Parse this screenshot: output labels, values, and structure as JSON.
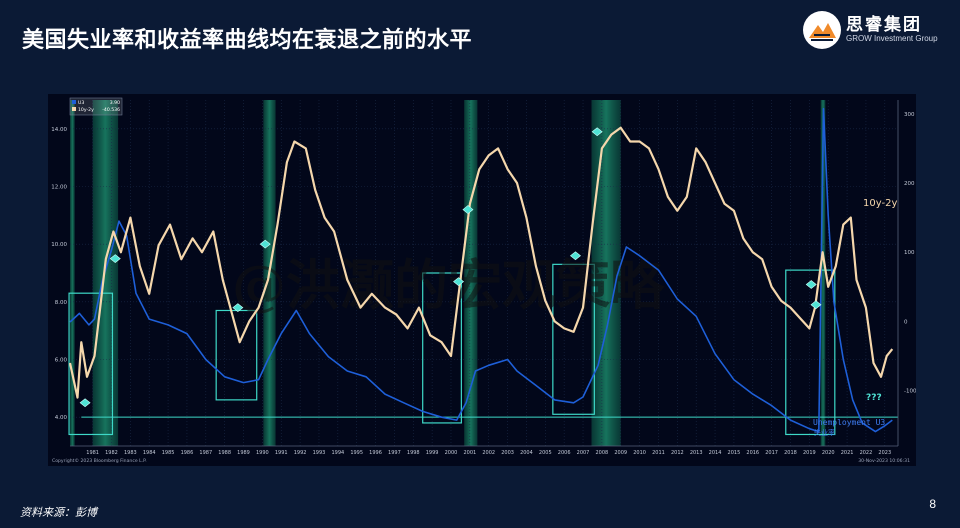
{
  "slide": {
    "title": "美国失业率和收益率曲线均在衰退之前的水平",
    "source": "资料来源：彭博",
    "page_number": "8",
    "logo_cn": "思睿集团",
    "logo_en": "GROW Investment Group",
    "watermark": "@洪灏的宏观策略"
  },
  "chart_data": {
    "type": "line",
    "title": "",
    "xlabel": "",
    "ylabel": "",
    "copyright": "Copyright© 2023 Bloomberg Finance L.P.",
    "date_stamp": "30-Nov-2023 10:06:31",
    "x_ticks": [
      "1981",
      "1982",
      "1983",
      "1984",
      "1985",
      "1986",
      "1987",
      "1988",
      "1989",
      "1990",
      "1991",
      "1992",
      "1993",
      "1994",
      "1995",
      "1996",
      "1997",
      "1998",
      "1999",
      "2000",
      "2001",
      "2002",
      "2003",
      "2004",
      "2005",
      "2006",
      "2007",
      "2008",
      "2009",
      "2010",
      "2011",
      "2012",
      "2013",
      "2014",
      "2015",
      "2016",
      "2017",
      "2018",
      "2019",
      "2020",
      "2021",
      "2022",
      "2023"
    ],
    "xlim": [
      1980.3,
      2024.2
    ],
    "left_axis": {
      "ylim": [
        3.0,
        15.0
      ],
      "ticks": [
        "4.00",
        "6.00",
        "8.00",
        "10.00",
        "12.00",
        "14.00"
      ]
    },
    "right_axis": {
      "ylim": [
        -180,
        320
      ],
      "ticks": [
        "300",
        "200",
        "100",
        "0",
        "-100"
      ]
    },
    "legend": {
      "position": "top-left",
      "entries": [
        {
          "label": "U3",
          "value": "3.90",
          "color": "#1e5fd8"
        },
        {
          "label": "10y-2y",
          "value": "-40.536",
          "color": "#f5d7ac"
        }
      ]
    },
    "annotations": {
      "curve_label": "10y-2y",
      "unemp_label_1": "Unemployment U3",
      "unemp_label_2": "失业率",
      "question": "???"
    },
    "recessions": [
      [
        1980.0,
        1980.55
      ],
      [
        1981.5,
        1982.85
      ],
      [
        1990.55,
        1991.2
      ],
      [
        2001.2,
        2001.9
      ],
      [
        2007.95,
        2009.5
      ],
      [
        2020.1,
        2020.35
      ]
    ],
    "highlight_boxes": [
      {
        "x0": 1980.25,
        "x1": 1982.55,
        "y0": 3.4,
        "y1": 8.3
      },
      {
        "x0": 1988.05,
        "x1": 1990.2,
        "y0": 4.6,
        "y1": 7.7
      },
      {
        "x0": 1999.0,
        "x1": 2001.05,
        "y0": 3.8,
        "y1": 9.0
      },
      {
        "x0": 2005.9,
        "x1": 2008.1,
        "y0": 4.1,
        "y1": 9.3
      },
      {
        "x0": 2018.25,
        "x1": 2020.85,
        "y0": 3.4,
        "y1": 9.1
      }
    ],
    "baseline_unemp": 4.0,
    "markers": [
      {
        "x": 1981.1,
        "y": 4.5
      },
      {
        "x": 1982.7,
        "y": 9.5
      },
      {
        "x": 1989.2,
        "y": 7.8
      },
      {
        "x": 1990.65,
        "y": 10.0
      },
      {
        "x": 2000.9,
        "y": 8.7
      },
      {
        "x": 2001.4,
        "y": 11.2
      },
      {
        "x": 2007.1,
        "y": 9.6
      },
      {
        "x": 2008.25,
        "y": 13.9
      },
      {
        "x": 2019.6,
        "y": 8.6
      },
      {
        "x": 2019.85,
        "y": 7.9
      }
    ],
    "series": [
      {
        "name": "U3",
        "axis": "left",
        "color": "#1e5fd8",
        "x": [
          1980.3,
          1980.8,
          1981.3,
          1981.6,
          1982.0,
          1982.5,
          1982.9,
          1983.3,
          1983.8,
          1984.5,
          1985.5,
          1986.5,
          1987.5,
          1988.5,
          1989.5,
          1990.3,
          1990.8,
          1991.5,
          1992.3,
          1993.0,
          1994.0,
          1995.0,
          1996.0,
          1997.0,
          1998.0,
          1999.0,
          2000.0,
          2000.8,
          2001.3,
          2001.8,
          2002.5,
          2003.5,
          2004.0,
          2005.0,
          2006.0,
          2007.0,
          2007.5,
          2008.3,
          2008.8,
          2009.3,
          2009.8,
          2010.5,
          2011.5,
          2012.5,
          2013.5,
          2014.5,
          2015.5,
          2016.5,
          2017.5,
          2018.5,
          2019.5,
          2020.0,
          2020.25,
          2020.5,
          2020.8,
          2021.3,
          2021.8,
          2022.3,
          2023.0,
          2023.5,
          2023.9
        ],
        "values": [
          7.3,
          7.6,
          7.2,
          7.4,
          8.7,
          9.8,
          10.8,
          10.3,
          8.3,
          7.4,
          7.2,
          6.9,
          6.0,
          5.4,
          5.2,
          5.3,
          6.0,
          6.9,
          7.7,
          6.9,
          6.1,
          5.6,
          5.4,
          4.8,
          4.5,
          4.2,
          4.0,
          3.9,
          4.5,
          5.6,
          5.8,
          6.0,
          5.6,
          5.1,
          4.6,
          4.5,
          4.7,
          5.8,
          7.2,
          8.9,
          9.9,
          9.6,
          9.1,
          8.1,
          7.5,
          6.2,
          5.3,
          4.8,
          4.4,
          3.9,
          3.6,
          3.5,
          14.7,
          11.0,
          8.0,
          6.0,
          4.6,
          3.8,
          3.5,
          3.7,
          3.9
        ]
      },
      {
        "name": "10y-2y",
        "axis": "right",
        "color": "#f5d7ac",
        "x": [
          1980.3,
          1980.7,
          1980.9,
          1981.2,
          1981.6,
          1981.9,
          1982.2,
          1982.6,
          1983.0,
          1983.5,
          1984.0,
          1984.5,
          1985.0,
          1985.6,
          1986.2,
          1986.8,
          1987.3,
          1987.9,
          1988.4,
          1988.9,
          1989.3,
          1989.8,
          1990.3,
          1990.8,
          1991.3,
          1991.8,
          1992.2,
          1992.8,
          1993.3,
          1993.8,
          1994.3,
          1995.0,
          1995.7,
          1996.3,
          1997.0,
          1997.6,
          1998.2,
          1998.8,
          1999.4,
          2000.0,
          2000.5,
          2001.0,
          2001.5,
          2002.0,
          2002.5,
          2003.0,
          2003.5,
          2004.0,
          2004.5,
          2005.0,
          2005.5,
          2006.0,
          2006.5,
          2007.0,
          2007.5,
          2008.0,
          2008.5,
          2009.0,
          2009.5,
          2010.0,
          2010.5,
          2011.0,
          2011.5,
          2012.0,
          2012.5,
          2013.0,
          2013.5,
          2014.0,
          2014.5,
          2015.0,
          2015.5,
          2016.0,
          2016.5,
          2017.0,
          2017.5,
          2018.0,
          2018.5,
          2019.0,
          2019.5,
          2019.8,
          2020.2,
          2020.5,
          2020.9,
          2021.3,
          2021.7,
          2022.0,
          2022.5,
          2022.9,
          2023.3,
          2023.6,
          2023.9
        ],
        "values": [
          -60,
          -110,
          -30,
          -80,
          -50,
          20,
          90,
          130,
          100,
          150,
          80,
          40,
          110,
          140,
          90,
          120,
          100,
          130,
          60,
          10,
          -30,
          0,
          20,
          60,
          140,
          230,
          260,
          250,
          190,
          150,
          130,
          60,
          20,
          40,
          20,
          10,
          -10,
          20,
          -20,
          -30,
          -50,
          60,
          170,
          220,
          240,
          250,
          220,
          200,
          150,
          80,
          30,
          0,
          -10,
          -15,
          20,
          140,
          250,
          270,
          280,
          260,
          260,
          250,
          220,
          180,
          160,
          180,
          250,
          230,
          200,
          170,
          160,
          120,
          100,
          90,
          50,
          30,
          20,
          5,
          -10,
          20,
          100,
          50,
          80,
          140,
          150,
          60,
          20,
          -60,
          -80,
          -50,
          -40
        ]
      }
    ]
  }
}
